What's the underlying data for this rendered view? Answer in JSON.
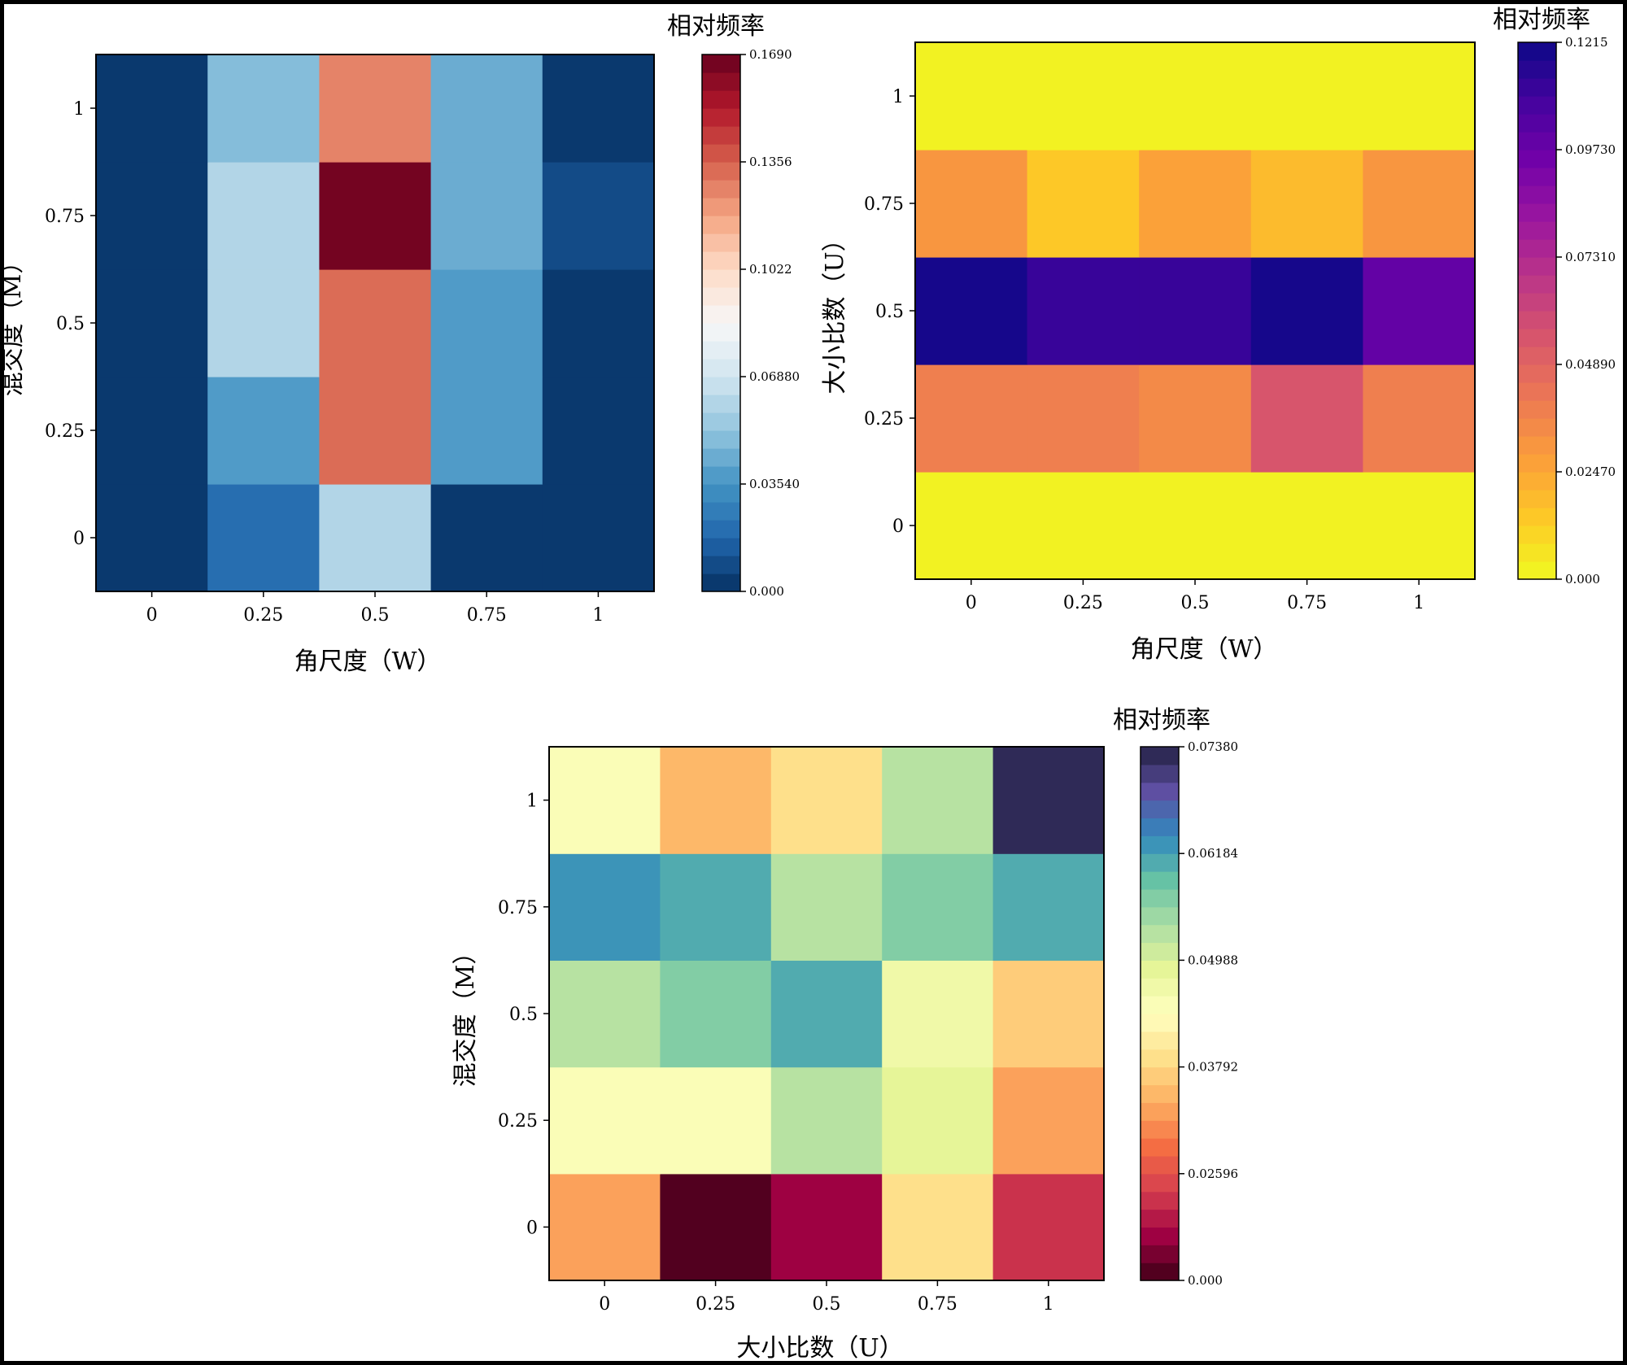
{
  "chart_data": [
    {
      "type": "heatmap",
      "x": [
        0,
        0.25,
        0.5,
        0.75,
        1
      ],
      "y": [
        0,
        0.25,
        0.5,
        0.75,
        1
      ],
      "x_tick_labels": [
        "0",
        "0.25",
        "0.5",
        "0.75",
        "1"
      ],
      "y_tick_labels": [
        "0",
        "0.25",
        "0.5",
        "0.75",
        "1"
      ],
      "xlabel": "角尺度（W）",
      "ylabel": "混交度（M）",
      "colorbar_label": "相对频率",
      "colormap": "Blues_r to Reds (RdBu_r)",
      "colorbar_ticks": [
        "0.000",
        "0.03540",
        "0.06880",
        "0.1022",
        "0.1356",
        "0.1690"
      ],
      "colorbar_range": [
        0,
        0.169
      ],
      "colorbar_levels": 30,
      "z": [
        [
          0.0,
          0.02,
          0.06,
          0.005,
          0.0
        ],
        [
          0.0,
          0.035,
          0.13,
          0.035,
          0.0
        ],
        [
          0.0,
          0.06,
          0.135,
          0.038,
          0.0
        ],
        [
          0.0,
          0.06,
          0.169,
          0.04,
          0.008
        ],
        [
          0.0,
          0.05,
          0.128,
          0.04,
          0.001
        ]
      ]
    },
    {
      "type": "heatmap",
      "x": [
        0,
        0.25,
        0.5,
        0.75,
        1
      ],
      "y": [
        0,
        0.25,
        0.5,
        0.75,
        1
      ],
      "x_tick_labels": [
        "0",
        "0.25",
        "0.5",
        "0.75",
        "1"
      ],
      "y_tick_labels": [
        "0",
        "0.25",
        "0.5",
        "0.75",
        "1"
      ],
      "xlabel": "角尺度（W）",
      "ylabel": "大小比数（U）",
      "colorbar_label": "相对频率",
      "colormap": "plasma_r",
      "colorbar_ticks": [
        "0.000",
        "0.02470",
        "0.04890",
        "0.07310",
        "0.09730",
        "0.1215"
      ],
      "colorbar_range": [
        0,
        0.1215
      ],
      "colorbar_levels": 30,
      "z": [
        [
          0.0,
          0.0,
          0.0,
          0.004,
          0.004
        ],
        [
          0.038,
          0.038,
          0.034,
          0.053,
          0.04
        ],
        [
          0.119,
          0.113,
          0.113,
          0.121,
          0.1
        ],
        [
          0.03,
          0.016,
          0.028,
          0.02,
          0.03
        ],
        [
          0.002,
          0.002,
          0.002,
          0.002,
          0.002
        ]
      ]
    },
    {
      "type": "heatmap",
      "x": [
        0,
        0.25,
        0.5,
        0.75,
        1
      ],
      "y": [
        0,
        0.25,
        0.5,
        0.75,
        1
      ],
      "x_tick_labels": [
        "0",
        "0.25",
        "0.5",
        "0.75",
        "1"
      ],
      "y_tick_labels": [
        "0",
        "0.25",
        "0.5",
        "0.75",
        "1"
      ],
      "xlabel": "大小比数（U）",
      "ylabel": "混交度（M）",
      "colorbar_label": "相对频率",
      "colormap": "Spectral",
      "colorbar_ticks": [
        "0.000",
        "0.02596",
        "0.03792",
        "0.04988",
        "0.06184",
        "0.07380"
      ],
      "colorbar_range": [
        0,
        0.0738
      ],
      "colorbar_levels": 30,
      "z": [
        [
          0.024,
          0.001,
          0.006,
          0.031,
          0.011
        ],
        [
          0.039,
          0.039,
          0.049,
          0.044,
          0.024
        ],
        [
          0.049,
          0.052,
          0.057,
          0.041,
          0.029
        ],
        [
          0.061,
          0.058,
          0.049,
          0.054,
          0.058
        ],
        [
          0.039,
          0.027,
          0.03,
          0.047,
          0.072
        ]
      ]
    }
  ]
}
